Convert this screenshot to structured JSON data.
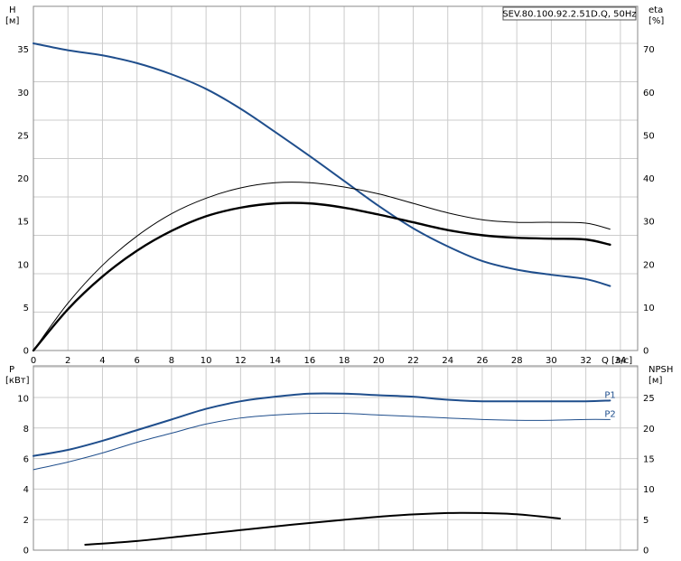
{
  "chart_data": [
    {
      "type": "line",
      "panel": "upper",
      "legend_box": "SEV.80.100.92.2.51D.Q, 50Hz",
      "xlabel": "Q [л/с]",
      "ylabel": "H",
      "ylabel_unit": "[м]",
      "y2label": "eta",
      "y2label_unit": "[%]",
      "xlim": [
        0,
        35
      ],
      "ylim": [
        0,
        40
      ],
      "y2lim": [
        0,
        80
      ],
      "x_ticks": [
        "0",
        "2",
        "4",
        "6",
        "8",
        "10",
        "12",
        "14",
        "16",
        "18",
        "20",
        "22",
        "24",
        "26",
        "28",
        "30",
        "32",
        "34"
      ],
      "y_ticks": [
        "0",
        "5",
        "10",
        "15",
        "20",
        "25",
        "30",
        "35"
      ],
      "y2_ticks": [
        "0",
        "10",
        "20",
        "30",
        "40",
        "50",
        "60",
        "70"
      ],
      "grid": true,
      "series": [
        {
          "axis": "left",
          "color": "#1f4e8c",
          "width": 2,
          "points": [
            [
              0,
              35.7
            ],
            [
              2,
              34.9
            ],
            [
              4,
              34.3
            ],
            [
              6,
              33.4
            ],
            [
              8,
              32.1
            ],
            [
              10,
              30.4
            ],
            [
              12,
              28.1
            ],
            [
              14,
              25.4
            ],
            [
              16,
              22.6
            ],
            [
              18,
              19.7
            ],
            [
              20,
              16.8
            ],
            [
              22,
              14.2
            ],
            [
              24,
              12.1
            ],
            [
              26,
              10.4
            ],
            [
              28,
              9.4
            ],
            [
              30,
              8.8
            ],
            [
              32,
              8.3
            ],
            [
              33.4,
              7.5
            ]
          ]
        },
        {
          "axis": "left",
          "color": "#000000",
          "width": 2.4,
          "points": [
            [
              0,
              0
            ],
            [
              2,
              4.8
            ],
            [
              4,
              8.6
            ],
            [
              6,
              11.6
            ],
            [
              8,
              13.9
            ],
            [
              10,
              15.6
            ],
            [
              12,
              16.6
            ],
            [
              14,
              17.1
            ],
            [
              16,
              17.1
            ],
            [
              18,
              16.6
            ],
            [
              20,
              15.8
            ],
            [
              22,
              14.9
            ],
            [
              24,
              14.0
            ],
            [
              26,
              13.4
            ],
            [
              28,
              13.1
            ],
            [
              30,
              13.0
            ],
            [
              32,
              12.9
            ],
            [
              33.4,
              12.3
            ]
          ]
        },
        {
          "axis": "left",
          "color": "#000000",
          "width": 1,
          "points": [
            [
              0,
              0
            ],
            [
              2,
              5.5
            ],
            [
              4,
              9.9
            ],
            [
              6,
              13.3
            ],
            [
              8,
              15.9
            ],
            [
              10,
              17.7
            ],
            [
              12,
              18.9
            ],
            [
              14,
              19.5
            ],
            [
              16,
              19.5
            ],
            [
              18,
              19.0
            ],
            [
              20,
              18.2
            ],
            [
              22,
              17.1
            ],
            [
              24,
              16.0
            ],
            [
              26,
              15.2
            ],
            [
              28,
              14.9
            ],
            [
              30,
              14.9
            ],
            [
              32,
              14.8
            ],
            [
              33.4,
              14.1
            ]
          ]
        }
      ]
    },
    {
      "type": "line",
      "panel": "lower",
      "ylabel": "P",
      "ylabel_unit": "[кВт]",
      "y2label": "NPSH",
      "y2label_unit": "[м]",
      "xlim": [
        0,
        35
      ],
      "ylim": [
        0,
        12.13
      ],
      "y2lim": [
        0,
        30.3
      ],
      "y_ticks": [
        "0",
        "2",
        "4",
        "6",
        "8",
        "10"
      ],
      "y2_ticks": [
        "0",
        "5",
        "10",
        "15",
        "20",
        "25"
      ],
      "grid": true,
      "series": [
        {
          "name": "P1",
          "axis": "left",
          "color": "#1f4e8c",
          "width": 2,
          "points": [
            [
              0,
              6.2
            ],
            [
              2,
              6.6
            ],
            [
              4,
              7.2
            ],
            [
              6,
              7.9
            ],
            [
              8,
              8.6
            ],
            [
              10,
              9.3
            ],
            [
              12,
              9.8
            ],
            [
              14,
              10.1
            ],
            [
              16,
              10.3
            ],
            [
              18,
              10.3
            ],
            [
              20,
              10.2
            ],
            [
              22,
              10.1
            ],
            [
              24,
              9.9
            ],
            [
              26,
              9.8
            ],
            [
              28,
              9.8
            ],
            [
              30,
              9.8
            ],
            [
              32,
              9.8
            ],
            [
              33.4,
              9.85
            ]
          ]
        },
        {
          "name": "P2",
          "axis": "left",
          "color": "#1f4e8c",
          "width": 1,
          "points": [
            [
              0,
              5.3
            ],
            [
              2,
              5.8
            ],
            [
              4,
              6.4
            ],
            [
              6,
              7.1
            ],
            [
              8,
              7.7
            ],
            [
              10,
              8.3
            ],
            [
              12,
              8.7
            ],
            [
              14,
              8.9
            ],
            [
              16,
              9.0
            ],
            [
              18,
              9.0
            ],
            [
              20,
              8.9
            ],
            [
              22,
              8.8
            ],
            [
              24,
              8.7
            ],
            [
              26,
              8.6
            ],
            [
              28,
              8.55
            ],
            [
              30,
              8.55
            ],
            [
              32,
              8.6
            ],
            [
              33.4,
              8.6
            ]
          ]
        },
        {
          "axis": "right",
          "color": "#000000",
          "width": 2,
          "points": [
            [
              3,
              0.9
            ],
            [
              6,
              1.5
            ],
            [
              9,
              2.4
            ],
            [
              12,
              3.3
            ],
            [
              15,
              4.2
            ],
            [
              18,
              5.0
            ],
            [
              21,
              5.7
            ],
            [
              24,
              6.1
            ],
            [
              26,
              6.1
            ],
            [
              28,
              5.9
            ],
            [
              30.5,
              5.2
            ]
          ]
        }
      ]
    }
  ]
}
